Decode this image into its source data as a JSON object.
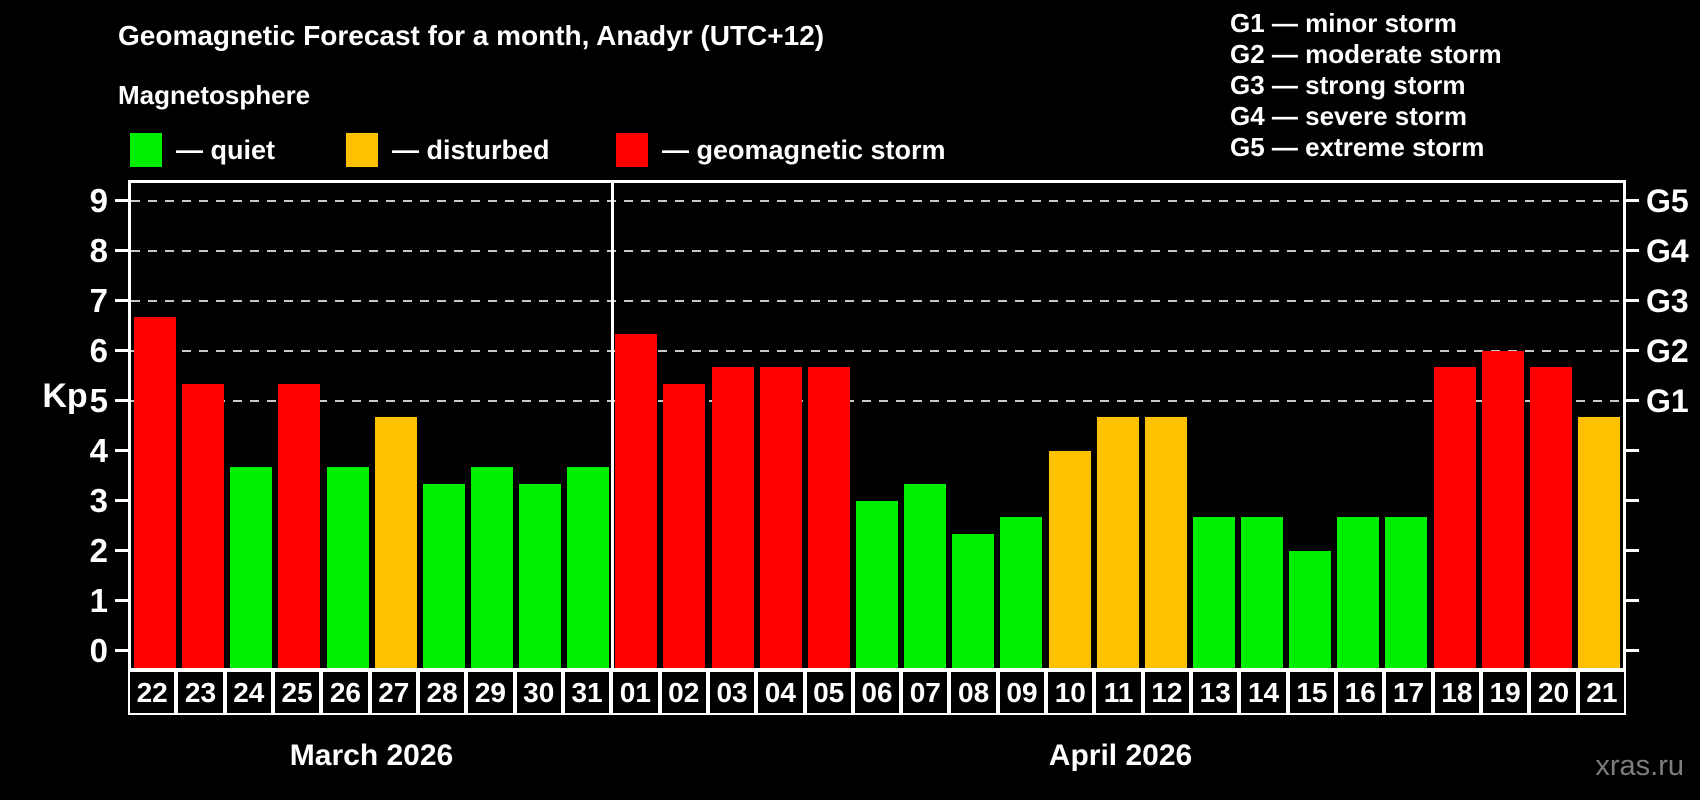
{
  "title": "Geomagnetic Forecast for a month, Anadyr (UTC+12)",
  "subtitle": "Magnetosphere",
  "legend": [
    {
      "status": "quiet",
      "label": "— quiet"
    },
    {
      "status": "disturbed",
      "label": "— disturbed"
    },
    {
      "status": "storm",
      "label": "— geomagnetic storm"
    }
  ],
  "storm_scale": [
    {
      "label": "G1 — minor storm"
    },
    {
      "label": "G2 — moderate storm"
    },
    {
      "label": "G3 — strong storm"
    },
    {
      "label": "G4 — severe storm"
    },
    {
      "label": "G5 — extreme storm"
    }
  ],
  "axis": {
    "kp_label": "Kp",
    "left_ticks": [
      0,
      1,
      2,
      3,
      4,
      5,
      6,
      7,
      8,
      9
    ],
    "right_labels": [
      {
        "kp": 5,
        "label": "G1"
      },
      {
        "kp": 6,
        "label": "G2"
      },
      {
        "kp": 7,
        "label": "G3"
      },
      {
        "kp": 8,
        "label": "G4"
      },
      {
        "kp": 9,
        "label": "G5"
      }
    ]
  },
  "colors": {
    "quiet": "#00ee00",
    "disturbed": "#ffc000",
    "storm": "#ff0000",
    "grid": "#c8c8c8",
    "frame": "#ffffff",
    "watermark": "#7d7d7d"
  },
  "watermark": "xras.ru",
  "chart_data": {
    "type": "bar",
    "title": "Geomagnetic Forecast for a month, Anadyr (UTC+12)",
    "ylabel": "Kp",
    "ylim": [
      0,
      9
    ],
    "gridlines_at": [
      5,
      6,
      7,
      8,
      9
    ],
    "legend_position": "top",
    "months": [
      {
        "label": "March 2026",
        "days": 10
      },
      {
        "label": "April 2026",
        "days": 21
      }
    ],
    "categories": [
      "22",
      "23",
      "24",
      "25",
      "26",
      "27",
      "28",
      "29",
      "30",
      "31",
      "01",
      "02",
      "03",
      "04",
      "05",
      "06",
      "07",
      "08",
      "09",
      "10",
      "11",
      "12",
      "13",
      "14",
      "15",
      "16",
      "17",
      "18",
      "19",
      "20",
      "21"
    ],
    "values": [
      6.67,
      5.33,
      3.67,
      5.33,
      3.67,
      4.67,
      3.33,
      3.67,
      3.33,
      3.67,
      6.33,
      5.33,
      5.67,
      5.67,
      5.67,
      3.0,
      3.33,
      2.33,
      2.67,
      4.0,
      4.67,
      4.67,
      2.67,
      2.67,
      2.0,
      2.67,
      2.67,
      5.67,
      6.0,
      5.67,
      4.67
    ],
    "statuses": [
      "storm",
      "storm",
      "quiet",
      "storm",
      "quiet",
      "disturbed",
      "quiet",
      "quiet",
      "quiet",
      "quiet",
      "storm",
      "storm",
      "storm",
      "storm",
      "storm",
      "quiet",
      "quiet",
      "quiet",
      "quiet",
      "disturbed",
      "disturbed",
      "disturbed",
      "quiet",
      "quiet",
      "quiet",
      "quiet",
      "quiet",
      "storm",
      "storm",
      "storm",
      "disturbed"
    ]
  }
}
